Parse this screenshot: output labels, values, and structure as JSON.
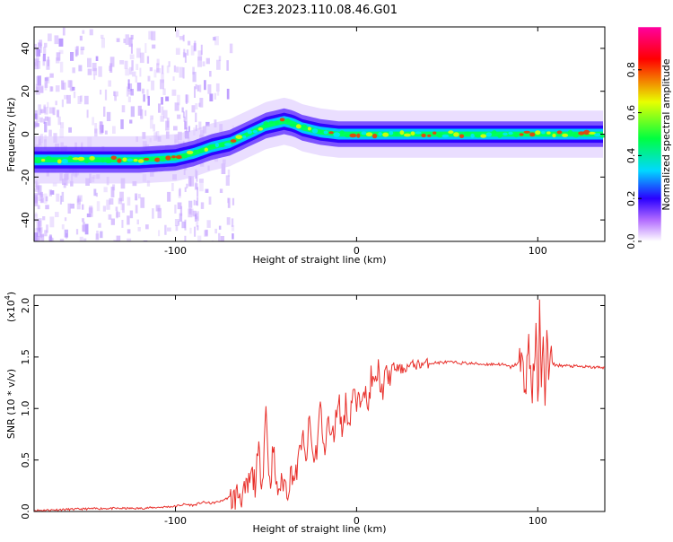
{
  "figure": {
    "title": "C2E3.2023.110.08.46.G01"
  },
  "chart_data": [
    {
      "type": "heatmap",
      "xlabel": "Height of straight line (km)",
      "ylabel": "Frequency (Hz)",
      "xlim": [
        -178,
        137
      ],
      "ylim": [
        -50,
        50
      ],
      "xticks": [
        -100,
        0,
        100
      ],
      "xtick_labels": [
        "-100",
        "0",
        "100"
      ],
      "yticks": [
        -40,
        -20,
        0,
        20,
        40
      ],
      "ytick_labels": [
        "-40",
        "-20",
        "0",
        "20",
        "40"
      ],
      "colorbar": {
        "label": "Normalized spectral amplitude",
        "range": [
          0,
          1
        ],
        "ticks": [
          0.0,
          0.2,
          0.4,
          0.6,
          0.8
        ],
        "tick_labels": [
          "0.0",
          "0.2",
          "0.4",
          "0.6",
          "0.8"
        ],
        "colors": [
          "#ffffff",
          "#b26bff",
          "#2a00ff",
          "#00d8ff",
          "#00ff40",
          "#e8ff00",
          "#ff0000",
          "#ff00a0"
        ]
      },
      "ridge": {
        "x": [
          -178,
          -150,
          -120,
          -100,
          -90,
          -80,
          -70,
          -60,
          -50,
          -40,
          -35,
          -30,
          -20,
          -10,
          0,
          50,
          100,
          137
        ],
        "y": [
          -12,
          -12,
          -12,
          -11,
          -9,
          -6,
          -4,
          0,
          4,
          6,
          5,
          3,
          1,
          0,
          0,
          0,
          0,
          0
        ]
      },
      "grid": false
    },
    {
      "type": "line",
      "xlabel": "Height of straight line (km)",
      "ylabel": "SNR (10 * v/v)",
      "yscale_note": "(x10",
      "yscale_exp": "4",
      "yscale_close": ")",
      "xlim": [
        -178,
        137
      ],
      "ylim": [
        0,
        2.1
      ],
      "xticks": [
        -100,
        0,
        100
      ],
      "xtick_labels": [
        "-100",
        "0",
        "100"
      ],
      "yticks": [
        0,
        0.5,
        1.0,
        1.5,
        2.0
      ],
      "ytick_labels": [
        "0.0",
        "0.5",
        "1.0",
        "1.5",
        "2.0"
      ],
      "series_color": "#e8302b",
      "series": [
        {
          "x": [
            -178,
            -160,
            -140,
            -120,
            -110,
            -100,
            -95,
            -90,
            -85,
            -80,
            -75,
            -70,
            -68,
            -65,
            -62,
            -60,
            -58,
            -56,
            -54,
            -52,
            -50,
            -48,
            -46,
            -44,
            -42,
            -40,
            -38,
            -36,
            -34,
            -32,
            -30,
            -28,
            -26,
            -24,
            -22,
            -20,
            -18,
            -16,
            -14,
            -12,
            -10,
            -8,
            -6,
            -4,
            -2,
            0,
            2,
            4,
            6,
            8,
            10,
            12,
            14,
            16,
            18,
            20,
            25,
            30,
            40,
            50,
            60,
            70,
            80,
            85,
            90,
            93,
            95,
            97,
            99,
            100,
            101,
            102,
            103,
            104,
            105,
            106,
            107,
            110,
            120,
            130,
            137
          ],
          "y": [
            0.01,
            0.02,
            0.03,
            0.03,
            0.04,
            0.05,
            0.07,
            0.06,
            0.09,
            0.08,
            0.1,
            0.14,
            0.12,
            0.18,
            0.15,
            0.22,
            0.35,
            0.28,
            0.55,
            0.3,
            1.02,
            0.25,
            0.6,
            0.2,
            0.25,
            0.3,
            0.2,
            0.4,
            0.3,
            0.5,
            0.75,
            0.45,
            0.9,
            0.5,
            0.6,
            1.05,
            0.55,
            0.9,
            0.7,
            0.8,
            1.15,
            0.75,
            1.05,
            0.85,
            1.2,
            1.0,
            1.1,
            1.28,
            0.95,
            1.3,
            1.2,
            1.38,
            1.15,
            1.32,
            1.3,
            1.4,
            1.38,
            1.42,
            1.44,
            1.45,
            1.44,
            1.43,
            1.43,
            1.4,
            1.45,
            1.3,
            1.55,
            1.2,
            1.75,
            0.85,
            2.1,
            1.0,
            1.85,
            1.2,
            1.6,
            1.35,
            1.45,
            1.42,
            1.41,
            1.4,
            1.4
          ]
        }
      ]
    }
  ]
}
